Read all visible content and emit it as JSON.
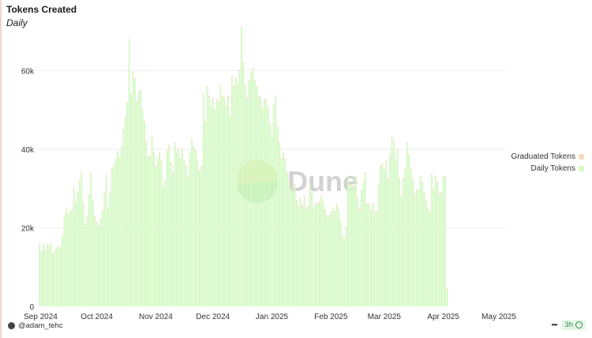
{
  "header": {
    "title": "Tokens Created",
    "subtitle": "Daily"
  },
  "footer": {
    "user": "@adam_tehc",
    "age": "3h"
  },
  "watermark": {
    "text": "Dune"
  },
  "colors": {
    "daily": "#d4f9c4",
    "graduated": "#f7d9bd",
    "grid": "#eeeeee",
    "watermark_yellow": "#e8d58c",
    "watermark_green": "#a8d8b0",
    "watermark_text": "#c8c8c8"
  },
  "chart_data": {
    "type": "bar",
    "stacked": true,
    "title": "Tokens Created",
    "subtitle": "Daily",
    "ylim": [
      0,
      72000
    ],
    "yticks": [
      0,
      20000,
      40000,
      60000
    ],
    "ytick_labels": [
      "0",
      "20k",
      "40k",
      "60k"
    ],
    "x_range": [
      "2024-09-01",
      "2025-05-03"
    ],
    "xticks": [
      "2024-09-01",
      "2024-10-01",
      "2024-11-01",
      "2024-12-01",
      "2025-01-01",
      "2025-02-01",
      "2025-03-01",
      "2025-04-01",
      "2025-05-01"
    ],
    "xtick_labels": [
      "Sep 2024",
      "Oct 2024",
      "Nov 2024",
      "Dec 2024",
      "Jan 2025",
      "Feb 2025",
      "Mar 2025",
      "Apr 2025",
      "May 2025"
    ],
    "legend": {
      "placement": "right"
    },
    "series": [
      {
        "name": "Graduated Tokens",
        "values": [
          200,
          200,
          200,
          200,
          200,
          200,
          200,
          200,
          200,
          200,
          200,
          200,
          200,
          200,
          200,
          200,
          200,
          200,
          200,
          200,
          200,
          200,
          200,
          200,
          200,
          200,
          200,
          200,
          200,
          200,
          200,
          200,
          200,
          200,
          200,
          200,
          200,
          200,
          200,
          200,
          200,
          200,
          200,
          200,
          200,
          200,
          200,
          200,
          200,
          300,
          300,
          300,
          300,
          300,
          300,
          300,
          300,
          300,
          300,
          300,
          300,
          300,
          300,
          300,
          300,
          300,
          300,
          300,
          300,
          300,
          300,
          300,
          300,
          300,
          300,
          300,
          300,
          300,
          300,
          300,
          300,
          300,
          300,
          300,
          300,
          300,
          300,
          300,
          300,
          300,
          300,
          300,
          300,
          300,
          300,
          300,
          300,
          300,
          300,
          300,
          300,
          300,
          300,
          300,
          300,
          300,
          300,
          300,
          300,
          300,
          300,
          300,
          300,
          300,
          300,
          300,
          300,
          300,
          300,
          300,
          300,
          300,
          300,
          300,
          300,
          300,
          300,
          300,
          300,
          300,
          300,
          300,
          300,
          300,
          300,
          300,
          300,
          300,
          300,
          300,
          300,
          300,
          300,
          300,
          300,
          300,
          300,
          300,
          300,
          300,
          300,
          300,
          300,
          300,
          300,
          300,
          300,
          300,
          300,
          300,
          300,
          300,
          300,
          300,
          300,
          300,
          300,
          300,
          300,
          300,
          300,
          300,
          300,
          300,
          300,
          300,
          300,
          300,
          300,
          300,
          300,
          300,
          300,
          300,
          300,
          300,
          300,
          300,
          300,
          300,
          300,
          300,
          300,
          300,
          300,
          300,
          300,
          300,
          300,
          300,
          300,
          300,
          300,
          300,
          300,
          300,
          300,
          300,
          300,
          300,
          300,
          300,
          300,
          300,
          300,
          300,
          300,
          300,
          300,
          300,
          300,
          300,
          300,
          300,
          300,
          300,
          300,
          300,
          300,
          300,
          300,
          300,
          300,
          300,
          300,
          300,
          300,
          100
        ]
      },
      {
        "name": "Daily Tokens",
        "values": [
          15800,
          13800,
          15800,
          14300,
          15800,
          15300,
          15800,
          13300,
          14300,
          14800,
          15300,
          14800,
          17800,
          22900,
          24900,
          23400,
          23900,
          24400,
          29900,
          26400,
          28900,
          31900,
          33900,
          26400,
          20900,
          22900,
          28400,
          33900,
          26900,
          22900,
          21400,
          20400,
          22400,
          24400,
          28900,
          33400,
          24900,
          28900,
          34900,
          35900,
          37400,
          39400,
          37900,
          40400,
          44900,
          47900,
          51900,
          67900,
          53900,
          59400,
          57900,
          51900,
          54400,
          54900,
          49900,
          46900,
          41900,
          37900,
          37900,
          42900,
          38900,
          35400,
          37400,
          38900,
          36900,
          30400,
          31900,
          39400,
          40900,
          36400,
          33900,
          41400,
          38900,
          39900,
          37400,
          39900,
          36900,
          35400,
          32900,
          38900,
          42400,
          40400,
          39400,
          36900,
          34400,
          35400,
          53900,
          46900,
          55900,
          53400,
          50900,
          52900,
          49900,
          52400,
          51900,
          55900,
          53400,
          52900,
          50900,
          53400,
          48400,
          58400,
          55900,
          57900,
          56400,
          59900,
          70900,
          61900,
          55900,
          52900,
          57400,
          59400,
          60400,
          57400,
          55900,
          53400,
          52900,
          50400,
          52400,
          52400,
          50400,
          46400,
          43400,
          51400,
          53400,
          45400,
          41400,
          37400,
          38900,
          37400,
          33900,
          31900,
          29900,
          29400,
          30900,
          26900,
          25400,
          27400,
          25400,
          27900,
          24400,
          25400,
          30900,
          28900,
          24900,
          25900,
          25900,
          26400,
          27900,
          26400,
          24400,
          22900,
          22900,
          23900,
          24900,
          23900,
          25900,
          24400,
          21900,
          17900,
          16900,
          19900,
          32900,
          30900,
          30900,
          30400,
          32900,
          27400,
          24400,
          29400,
          31400,
          33900,
          25900,
          25900,
          24400,
          25900,
          23900,
          23900,
          30900,
          35400,
          35900,
          34400,
          36900,
          32400,
          38400,
          42900,
          41900,
          36900,
          39900,
          32400,
          27900,
          32400,
          34900,
          41400,
          38400,
          34900,
          32400,
          28400,
          29400,
          29400,
          32900,
          31400,
          28900,
          26900,
          24900,
          23900,
          33400,
          29400,
          32900,
          31400,
          28400,
          28900,
          32900,
          32900,
          4300
        ]
      }
    ]
  }
}
